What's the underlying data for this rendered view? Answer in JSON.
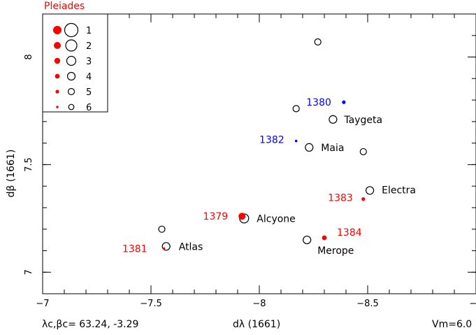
{
  "title": "Pleiades",
  "footer": {
    "left": "λc,βc= 63.24, -3.29",
    "right": "Vm=6.0"
  },
  "colors": {
    "red": "#ff0000",
    "blue": "#0000ff",
    "black": "#000000"
  },
  "chart_data": {
    "type": "scatter",
    "xlabel": "dλ (1661)",
    "ylabel": "dβ (1661)",
    "xlim": [
      -7,
      -9
    ],
    "ylim": [
      6.9,
      8.2
    ],
    "xticks": [
      -7,
      -7.5,
      -8,
      -8.5,
      -9
    ],
    "xtick_labels": [
      "−7",
      "−7.5",
      "−8",
      "−8.5",
      "−9"
    ],
    "yticks": [
      7,
      7.5,
      8
    ],
    "ytick_labels": [
      "7",
      "7.5",
      "8"
    ],
    "legend": {
      "placement": "top-left",
      "entries": [
        {
          "label": "1",
          "mag": 1
        },
        {
          "label": "2",
          "mag": 2
        },
        {
          "label": "3",
          "mag": 3
        },
        {
          "label": "4",
          "mag": 4
        },
        {
          "label": "5",
          "mag": 5
        },
        {
          "label": "6",
          "mag": 6
        }
      ]
    },
    "reference_stars": [
      {
        "name": "Alcyone",
        "x": -7.93,
        "y": 7.25,
        "mag": 3
      },
      {
        "name": "Atlas",
        "x": -7.57,
        "y": 7.12,
        "mag": 4
      },
      {
        "name": "Electra",
        "x": -8.51,
        "y": 7.38,
        "mag": 4
      },
      {
        "name": "Maia",
        "x": -8.23,
        "y": 7.58,
        "mag": 4
      },
      {
        "name": "Taygeta",
        "x": -8.34,
        "y": 7.71,
        "mag": 4
      },
      {
        "name": "Merope",
        "x": -8.22,
        "y": 7.15,
        "mag": 4
      },
      {
        "name": "",
        "x": -7.55,
        "y": 7.2,
        "mag": 5
      },
      {
        "name": "",
        "x": -8.17,
        "y": 7.76,
        "mag": 5
      },
      {
        "name": "",
        "x": -8.48,
        "y": 7.56,
        "mag": 5
      },
      {
        "name": "",
        "x": -8.27,
        "y": 8.07,
        "mag": 5
      }
    ],
    "catalog_stars": [
      {
        "label": "1379",
        "x": -7.92,
        "y": 7.26,
        "mag": 2,
        "color": "red"
      },
      {
        "label": "1381",
        "x": -7.56,
        "y": 7.11,
        "mag": 6,
        "color": "red"
      },
      {
        "label": "1383",
        "x": -8.48,
        "y": 7.34,
        "mag": 5,
        "color": "red"
      },
      {
        "label": "1384",
        "x": -8.3,
        "y": 7.16,
        "mag": 4,
        "color": "red"
      },
      {
        "label": "1380",
        "x": -8.39,
        "y": 7.79,
        "mag": 5,
        "color": "blue"
      },
      {
        "label": "1382",
        "x": -8.17,
        "y": 7.61,
        "mag": 6,
        "color": "blue"
      }
    ]
  }
}
